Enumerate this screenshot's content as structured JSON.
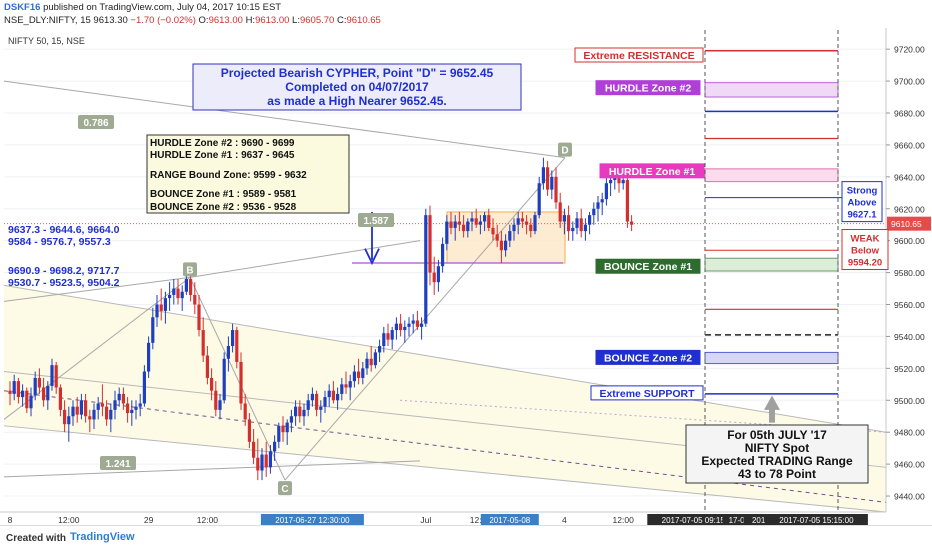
{
  "header": {
    "user": "DSKF16",
    "published": "published on TradingView.com, July 04, 2017 10:15 EST",
    "symbol": "NSE_DLY:NIFTY, 15",
    "last": "9613.30",
    "change": "−1.70 (−0.02%)",
    "o_label": "O:",
    "o": "9613.00",
    "h_label": "H:",
    "h": "9613.00",
    "l_label": "L:",
    "l": "9605.70",
    "c_label": "C:",
    "c": "9610.65"
  },
  "footer": {
    "created_with": "Created with",
    "brand": "TradingView"
  },
  "chart_data": {
    "type": "candlestick",
    "title": "NIFTY 50, 15, NSE",
    "y_ticks": [
      9440,
      9460,
      9480,
      9500,
      9520,
      9540,
      9560,
      9580,
      9600,
      9620,
      9640,
      9660,
      9680,
      9700,
      9720
    ],
    "ylim": [
      9430,
      9732
    ],
    "x_ticks": [
      {
        "label": "8",
        "i": 0
      },
      {
        "label": "12:00",
        "i": 14
      },
      {
        "label": "29",
        "i": 33
      },
      {
        "label": "12:00",
        "i": 47
      },
      {
        "label": "2017-06-27 12:30:00",
        "i": 72,
        "highlight": true
      },
      {
        "label": "Jul",
        "i": 99
      },
      {
        "label": "12:00",
        "i": 112
      },
      {
        "label": "2017-05-08",
        "i": 119,
        "highlight": true
      },
      {
        "label": "4",
        "i": 132
      },
      {
        "label": "12:00",
        "i": 146
      },
      {
        "label": "2017-07-05 09:15:00",
        "i": 164,
        "dark": true
      },
      {
        "label": "17-0",
        "i": 173,
        "dark": true
      },
      {
        "label": "2017-06-2",
        "i": 181,
        "dark": true
      },
      {
        "label": "2017-07-05 15:15:00",
        "i": 192,
        "dark": true
      }
    ],
    "last_price": "9610.65",
    "candles": [
      [
        9506,
        9512,
        9497,
        9504
      ],
      [
        9504,
        9516,
        9500,
        9512
      ],
      [
        9512,
        9514,
        9498,
        9502
      ],
      [
        9502,
        9510,
        9496,
        9506
      ],
      [
        9506,
        9508,
        9492,
        9495
      ],
      [
        9495,
        9508,
        9490,
        9503
      ],
      [
        9503,
        9518,
        9500,
        9514
      ],
      [
        9514,
        9520,
        9504,
        9508
      ],
      [
        9508,
        9514,
        9496,
        9500
      ],
      [
        9500,
        9512,
        9494,
        9509
      ],
      [
        9509,
        9526,
        9506,
        9522
      ],
      [
        9522,
        9524,
        9504,
        9508
      ],
      [
        9508,
        9510,
        9490,
        9494
      ],
      [
        9494,
        9500,
        9480,
        9485
      ],
      [
        9485,
        9496,
        9474,
        9490
      ],
      [
        9490,
        9500,
        9484,
        9496
      ],
      [
        9496,
        9502,
        9486,
        9491
      ],
      [
        9491,
        9504,
        9488,
        9500
      ],
      [
        9500,
        9504,
        9486,
        9490
      ],
      [
        9490,
        9494,
        9480,
        9488
      ],
      [
        9488,
        9498,
        9482,
        9494
      ],
      [
        9494,
        9502,
        9488,
        9498
      ],
      [
        9498,
        9510,
        9490,
        9496
      ],
      [
        9496,
        9500,
        9484,
        9488
      ],
      [
        9488,
        9498,
        9480,
        9494
      ],
      [
        9494,
        9506,
        9488,
        9500
      ],
      [
        9500,
        9508,
        9496,
        9504
      ],
      [
        9504,
        9508,
        9494,
        9498
      ],
      [
        9498,
        9502,
        9486,
        9492
      ],
      [
        9492,
        9500,
        9484,
        9494
      ],
      [
        9494,
        9500,
        9488,
        9496
      ],
      [
        9496,
        9504,
        9490,
        9498
      ],
      [
        9498,
        9522,
        9496,
        9518
      ],
      [
        9518,
        9540,
        9514,
        9536
      ],
      [
        9536,
        9558,
        9532,
        9552
      ],
      [
        9552,
        9566,
        9546,
        9560
      ],
      [
        9560,
        9570,
        9550,
        9556
      ],
      [
        9556,
        9568,
        9548,
        9564
      ],
      [
        9564,
        9574,
        9556,
        9566
      ],
      [
        9566,
        9576,
        9560,
        9570
      ],
      [
        9570,
        9576,
        9560,
        9564
      ],
      [
        9564,
        9572,
        9556,
        9568
      ],
      [
        9568,
        9580,
        9566,
        9576
      ],
      [
        9576,
        9578,
        9562,
        9566
      ],
      [
        9566,
        9574,
        9554,
        9560
      ],
      [
        9560,
        9566,
        9540,
        9544
      ],
      [
        9544,
        9552,
        9524,
        9528
      ],
      [
        9528,
        9534,
        9510,
        9514
      ],
      [
        9514,
        9520,
        9500,
        9506
      ],
      [
        9506,
        9512,
        9490,
        9494
      ],
      [
        9494,
        9504,
        9488,
        9500
      ],
      [
        9500,
        9530,
        9498,
        9526
      ],
      [
        9526,
        9540,
        9518,
        9534
      ],
      [
        9534,
        9548,
        9530,
        9544
      ],
      [
        9544,
        9546,
        9520,
        9524
      ],
      [
        9524,
        9530,
        9494,
        9498
      ],
      [
        9498,
        9504,
        9484,
        9488
      ],
      [
        9488,
        9492,
        9470,
        9474
      ],
      [
        9474,
        9482,
        9460,
        9464
      ],
      [
        9464,
        9476,
        9450,
        9456
      ],
      [
        9456,
        9470,
        9450,
        9466
      ],
      [
        9466,
        9474,
        9452,
        9458
      ],
      [
        9458,
        9472,
        9454,
        9468
      ],
      [
        9468,
        9478,
        9462,
        9474
      ],
      [
        9474,
        9486,
        9470,
        9484
      ],
      [
        9484,
        9490,
        9474,
        9480
      ],
      [
        9480,
        9488,
        9472,
        9486
      ],
      [
        9486,
        9494,
        9480,
        9490
      ],
      [
        9490,
        9500,
        9484,
        9496
      ],
      [
        9496,
        9500,
        9486,
        9490
      ],
      [
        9490,
        9498,
        9484,
        9494
      ],
      [
        9494,
        9504,
        9490,
        9500
      ],
      [
        9500,
        9508,
        9496,
        9504
      ],
      [
        9504,
        9506,
        9490,
        9494
      ],
      [
        9494,
        9500,
        9486,
        9496
      ],
      [
        9496,
        9506,
        9492,
        9502
      ],
      [
        9502,
        9510,
        9496,
        9506
      ],
      [
        9506,
        9512,
        9498,
        9500
      ],
      [
        9500,
        9508,
        9494,
        9504
      ],
      [
        9504,
        9514,
        9500,
        9510
      ],
      [
        9510,
        9518,
        9504,
        9508
      ],
      [
        9508,
        9516,
        9500,
        9512
      ],
      [
        9512,
        9522,
        9508,
        9518
      ],
      [
        9518,
        9526,
        9510,
        9514
      ],
      [
        9514,
        9524,
        9510,
        9520
      ],
      [
        9520,
        9530,
        9516,
        9526
      ],
      [
        9526,
        9534,
        9518,
        9522
      ],
      [
        9522,
        9532,
        9520,
        9530
      ],
      [
        9530,
        9538,
        9524,
        9534
      ],
      [
        9534,
        9546,
        9530,
        9542
      ],
      [
        9542,
        9548,
        9534,
        9538
      ],
      [
        9538,
        9546,
        9532,
        9544
      ],
      [
        9544,
        9552,
        9538,
        9548
      ],
      [
        9548,
        9554,
        9540,
        9544
      ],
      [
        9544,
        9550,
        9536,
        9546
      ],
      [
        9546,
        9552,
        9540,
        9548
      ],
      [
        9548,
        9554,
        9542,
        9550
      ],
      [
        9550,
        9556,
        9544,
        9546
      ],
      [
        9546,
        9552,
        9538,
        9548
      ],
      [
        9548,
        9620,
        9546,
        9616
      ],
      [
        9616,
        9622,
        9572,
        9580
      ],
      [
        9580,
        9590,
        9566,
        9574
      ],
      [
        9574,
        9588,
        9568,
        9584
      ],
      [
        9584,
        9602,
        9580,
        9598
      ],
      [
        9598,
        9616,
        9594,
        9612
      ],
      [
        9612,
        9618,
        9604,
        9608
      ],
      [
        9608,
        9616,
        9600,
        9612
      ],
      [
        9612,
        9618,
        9606,
        9610
      ],
      [
        9610,
        9616,
        9602,
        9606
      ],
      [
        9606,
        9614,
        9602,
        9612
      ],
      [
        9612,
        9618,
        9606,
        9614
      ],
      [
        9614,
        9620,
        9608,
        9610
      ],
      [
        9610,
        9616,
        9604,
        9612
      ],
      [
        9612,
        9618,
        9606,
        9616
      ],
      [
        9616,
        9620,
        9606,
        9608
      ],
      [
        9608,
        9614,
        9600,
        9604
      ],
      [
        9604,
        9610,
        9596,
        9600
      ],
      [
        9600,
        9606,
        9586,
        9594
      ],
      [
        9594,
        9604,
        9590,
        9600
      ],
      [
        9600,
        9610,
        9596,
        9606
      ],
      [
        9606,
        9614,
        9600,
        9610
      ],
      [
        9610,
        9618,
        9604,
        9614
      ],
      [
        9614,
        9618,
        9608,
        9612
      ],
      [
        9612,
        9616,
        9604,
        9610
      ],
      [
        9610,
        9614,
        9602,
        9606
      ],
      [
        9606,
        9618,
        9604,
        9616
      ],
      [
        9616,
        9640,
        9614,
        9636
      ],
      [
        9636,
        9652,
        9632,
        9646
      ],
      [
        9646,
        9650,
        9628,
        9632
      ],
      [
        9632,
        9644,
        9626,
        9640
      ],
      [
        9640,
        9646,
        9620,
        9624
      ],
      [
        9624,
        9630,
        9608,
        9612
      ],
      [
        9612,
        9620,
        9604,
        9616
      ],
      [
        9616,
        9622,
        9600,
        9606
      ],
      [
        9606,
        9612,
        9600,
        9608
      ],
      [
        9608,
        9618,
        9604,
        9614
      ],
      [
        9614,
        9620,
        9602,
        9606
      ],
      [
        9606,
        9614,
        9600,
        9610
      ],
      [
        9610,
        9618,
        9604,
        9616
      ],
      [
        9616,
        9624,
        9610,
        9620
      ],
      [
        9620,
        9628,
        9612,
        9624
      ],
      [
        9624,
        9630,
        9616,
        9626
      ],
      [
        9626,
        9640,
        9622,
        9636
      ],
      [
        9636,
        9642,
        9628,
        9638
      ],
      [
        9638,
        9646,
        9632,
        9640
      ],
      [
        9640,
        9644,
        9630,
        9636
      ],
      [
        9636,
        9642,
        9632,
        9638
      ],
      [
        9638,
        9640,
        9608,
        9612
      ],
      [
        9612,
        9616,
        9606,
        9610
      ]
    ],
    "annotations": {
      "projection_box": {
        "line1": "Projected Bearish CYPHER, Point \"D\" = 9652.45",
        "line2": "Completed on 04/07/2017",
        "line3": "as made a High Nearer 9652.45."
      },
      "zones_box": {
        "l1": "HURDLE Zone #2 : 9690 - 9699",
        "l2": "HURDLE Zone #1 : 9637 - 9645",
        "l3": "RANGE Bound Zone: 9599 - 9632",
        "l4": "BOUNCE Zone #1 : 9589 - 9581",
        "l5": "BOUNCE Zone #2 : 9536 - 9528"
      },
      "left_text": {
        "l1": "9637.3 - 9644.6, 9664.0",
        "l2": "9584 - 9576.7, 9557.3",
        "l3": "9690.9 - 9698.2, 9717.7",
        "l4": "9530.7 - 9523.5, 9504.2"
      },
      "ratio_0786": "0.786",
      "ratio_1587": "1.587",
      "ratio_1241": "1.241",
      "point_b": "B",
      "point_c": "C",
      "point_d": "D",
      "extreme_resistance": "Extreme RESISTANCE",
      "hurdle2": "HURDLE Zone #2",
      "hurdle1": "HURDLE Zone #1",
      "bounce1": "BOUNCE Zone #1",
      "bounce2": "BOUNCE Zone #2",
      "extreme_support": "Extreme SUPPORT",
      "strong_above": {
        "l1": "Strong",
        "l2": "Above",
        "l3": "9627.1"
      },
      "weak_below": {
        "l1": "WEAK",
        "l2": "Below",
        "l3": "9594.20"
      },
      "forecast": {
        "l1": "For 05th JULY '17",
        "l2": "NIFTY Spot",
        "l3": "Expected TRADING Range",
        "l4": "43  to 78 Point"
      }
    },
    "colors": {
      "up": "#1e3fbf",
      "down": "#d32f2f",
      "resistance": "#d32f2f",
      "hurdle": "#c02bd0",
      "bounce1": "#2e6b2e",
      "bounce2": "#1f2fd0",
      "support": "#1f2fd0"
    }
  }
}
